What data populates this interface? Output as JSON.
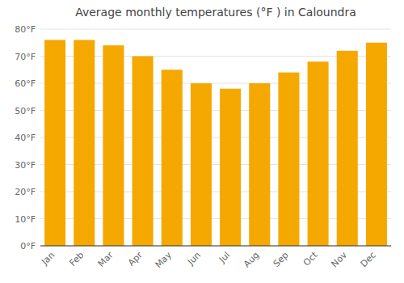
{
  "chart_data": {
    "type": "bar",
    "title": "Average monthly temperatures (°F ) in Caloundra",
    "categories": [
      "Jan",
      "Feb",
      "Mar",
      "Apr",
      "May",
      "Jun",
      "Jul",
      "Aug",
      "Sep",
      "Oct",
      "Nov",
      "Dec"
    ],
    "values": [
      76,
      76,
      74,
      70,
      65,
      60,
      58,
      60,
      64,
      68,
      72,
      75
    ],
    "color": "#F5A800",
    "ylim": [
      0,
      80
    ],
    "yticks": [
      {
        "value": 0,
        "label": "0°F"
      },
      {
        "value": 10,
        "label": "10°F"
      },
      {
        "value": 20,
        "label": "20°F"
      },
      {
        "value": 30,
        "label": "30°F"
      },
      {
        "value": 40,
        "label": "40°F"
      },
      {
        "value": 50,
        "label": "50°F"
      },
      {
        "value": 60,
        "label": "60°F"
      },
      {
        "value": 70,
        "label": "70°F"
      },
      {
        "value": 80,
        "label": "80°F"
      }
    ],
    "grid": true
  }
}
